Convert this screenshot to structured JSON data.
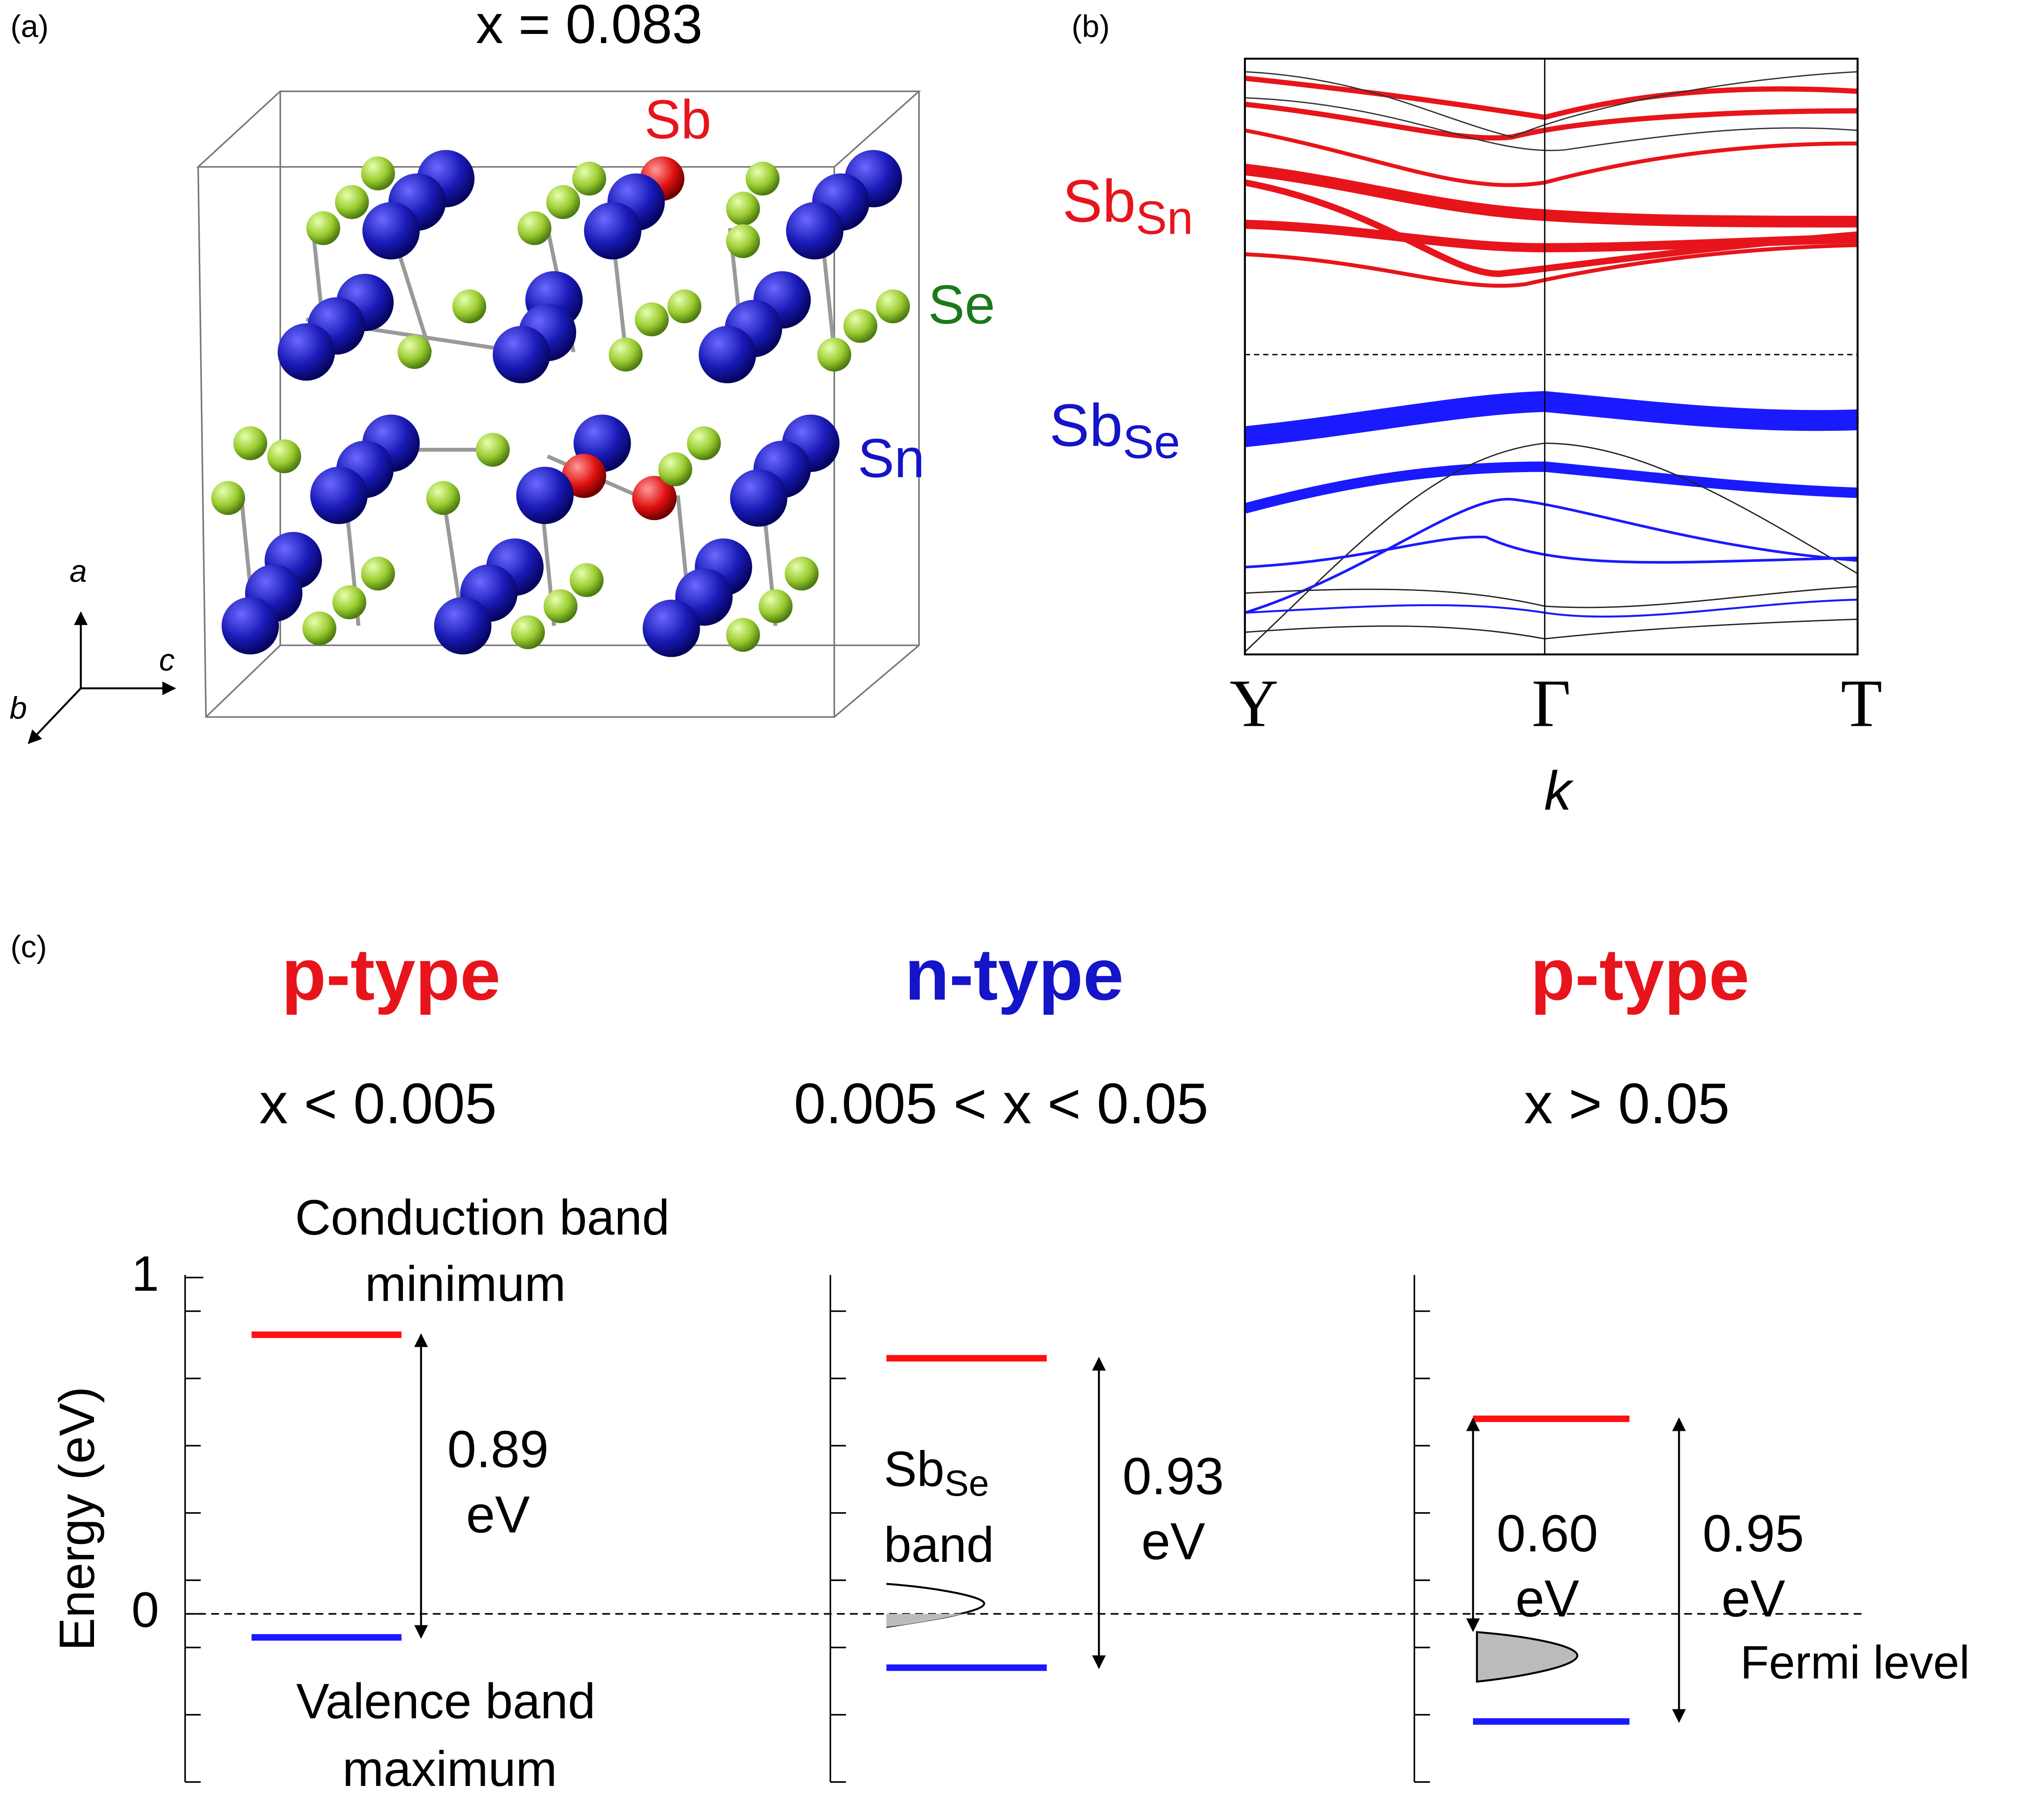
{
  "panel_a": {
    "label": "(a)",
    "title": "x = 0.083",
    "atoms": {
      "sb": "Sb",
      "se": "Se",
      "sn": "Sn"
    },
    "axes": {
      "a": "a",
      "b": "b",
      "c": "c"
    }
  },
  "panel_b": {
    "label": "(b)",
    "sb_sn": {
      "main": "Sb",
      "sub": "Sn"
    },
    "sb_se": {
      "main": "Sb",
      "sub": "Se"
    },
    "kpoints": [
      "Y",
      "Γ",
      "T"
    ],
    "xlabel": "k"
  },
  "panel_c": {
    "label": "(c)",
    "ylabel": "Energy (eV)",
    "ylim": [
      -0.5,
      1
    ],
    "yticks": [
      0,
      1
    ],
    "panels": [
      {
        "type_label": "p-type",
        "type_color": "#e8141b",
        "condition": "x < 0.005",
        "cbm": 0.83,
        "vbm": -0.07,
        "gaps": [
          {
            "value": "0.89",
            "unit": "eV"
          }
        ]
      },
      {
        "type_label": "n-type",
        "type_color": "#1414c8",
        "condition": "0.005 < x < 0.05",
        "cbm": 0.76,
        "vbm": -0.16,
        "gaps": [
          {
            "value": "0.93",
            "unit": "eV"
          }
        ]
      },
      {
        "type_label": "p-type",
        "type_color": "#e8141b",
        "condition": "x > 0.05",
        "cbm": 0.58,
        "vbm": -0.32,
        "fermi": -0.05,
        "gaps": [
          {
            "value": "0.60",
            "unit": "eV"
          },
          {
            "value": "0.95",
            "unit": "eV"
          }
        ]
      }
    ],
    "notes": {
      "cbm": [
        "Conduction band",
        "minimum"
      ],
      "vbm": [
        "Valence band",
        "maximum"
      ],
      "sbse_band": {
        "main": "Sb",
        "sub": "Se",
        "word": "band"
      },
      "fermi": "Fermi level"
    }
  }
}
